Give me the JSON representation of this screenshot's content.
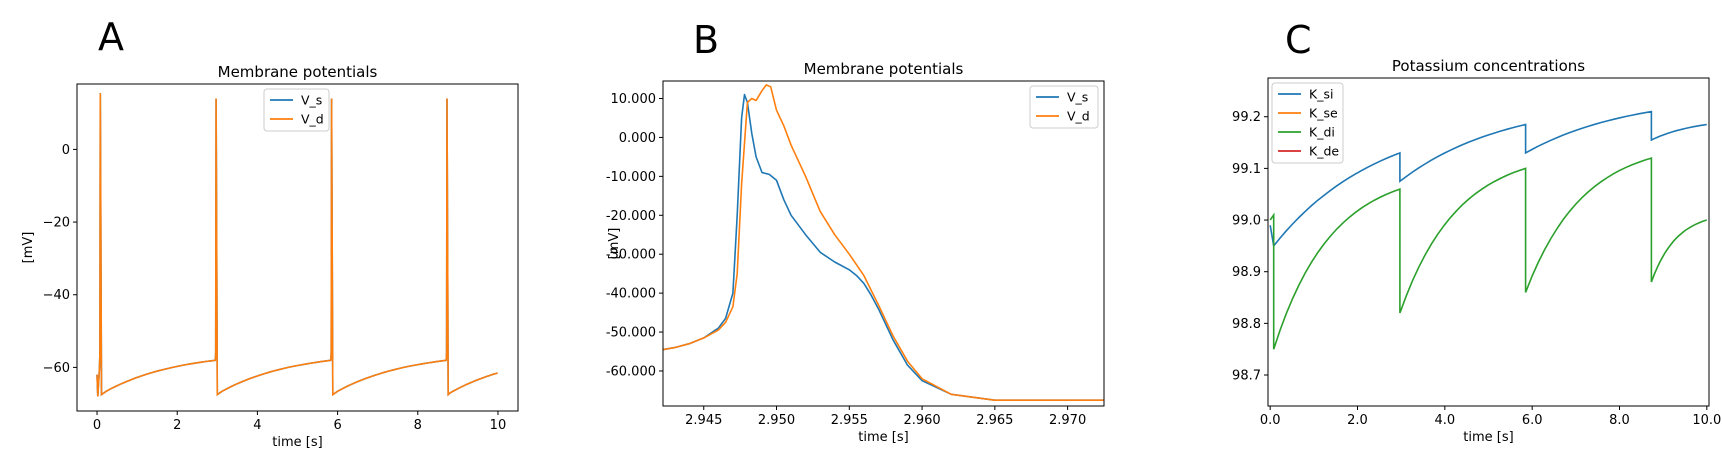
{
  "figure": {
    "panel_letters": [
      "A",
      "B",
      "C"
    ]
  },
  "colors": {
    "blue": "#1f77b4",
    "orange": "#ff7f0e",
    "green": "#2ca02c",
    "red": "#d62728"
  },
  "chart_data": [
    {
      "id": "A",
      "type": "line",
      "title": "Membrane potentials",
      "xlabel": "time [s]",
      "ylabel": "[mV]",
      "xlim": [
        -0.5,
        10.5
      ],
      "ylim": [
        -72,
        18
      ],
      "xticks": [
        0,
        2,
        4,
        6,
        8,
        10
      ],
      "yticks": [
        0,
        -20,
        -40,
        -60
      ],
      "legend_position": "top-center",
      "grid": false,
      "spike_times": [
        0.08,
        2.97,
        5.85,
        8.73
      ],
      "series": [
        {
          "name": "V_s",
          "color_key": "blue",
          "end_time": 10.0
        },
        {
          "name": "V_d",
          "color_key": "orange",
          "end_time": 10.0
        }
      ]
    },
    {
      "id": "B",
      "type": "line",
      "title": "Membrane potentials",
      "xlabel": "time [s]",
      "ylabel": "[mV]",
      "xlim": [
        2.9422,
        2.9725
      ],
      "ylim": [
        -69,
        14.5
      ],
      "xticks": [
        2.945,
        2.95,
        2.955,
        2.96,
        2.965,
        2.97
      ],
      "yticks": [
        10,
        0,
        -10,
        -20,
        -30,
        -40,
        -50,
        -60
      ],
      "legend_position": "top-right",
      "grid": false,
      "series": [
        {
          "name": "V_s",
          "color_key": "blue",
          "x": [
            2.9422,
            2.943,
            2.944,
            2.945,
            2.946,
            2.9465,
            2.947,
            2.9473,
            2.9476,
            2.9478,
            2.948,
            2.9483,
            2.9486,
            2.949,
            2.9495,
            2.95,
            2.9505,
            2.951,
            2.952,
            2.953,
            2.954,
            2.955,
            2.9555,
            2.956,
            2.9565,
            2.957,
            2.958,
            2.959,
            2.96,
            2.962,
            2.965,
            2.9725
          ],
          "y": [
            -54.5,
            -54,
            -53,
            -51.5,
            -49,
            -46.5,
            -40,
            -20,
            5,
            11,
            9,
            1,
            -5,
            -9,
            -9.5,
            -11,
            -16,
            -20,
            -25,
            -29.5,
            -32,
            -34,
            -35.5,
            -37.5,
            -40.5,
            -44,
            -52,
            -58.5,
            -62.5,
            -66,
            -67.5,
            -67.5
          ]
        },
        {
          "name": "V_d",
          "color_key": "orange",
          "x": [
            2.9422,
            2.943,
            2.944,
            2.945,
            2.946,
            2.9465,
            2.947,
            2.9473,
            2.9476,
            2.948,
            2.9483,
            2.9486,
            2.949,
            2.9493,
            2.9496,
            2.95,
            2.9505,
            2.951,
            2.952,
            2.953,
            2.954,
            2.955,
            2.956,
            2.957,
            2.958,
            2.959,
            2.96,
            2.962,
            2.965,
            2.9725
          ],
          "y": [
            -54.5,
            -54,
            -53,
            -51.5,
            -49.5,
            -47.5,
            -43.5,
            -35,
            -12,
            9,
            10,
            9.5,
            12,
            13.5,
            13,
            7,
            3,
            -2,
            -10,
            -19,
            -25,
            -30,
            -35.5,
            -43,
            -51,
            -57.5,
            -62,
            -66,
            -67.5,
            -67.5
          ]
        }
      ]
    },
    {
      "id": "C",
      "type": "line",
      "title": "Potassium concentrations",
      "xlabel": "time [s]",
      "ylabel": "",
      "xlim": [
        -0.05,
        10.05
      ],
      "ylim": [
        98.64,
        99.275
      ],
      "xticks": [
        0,
        2,
        4,
        6,
        8,
        10
      ],
      "yticks": [
        99.2,
        99.1,
        99.0,
        98.9,
        98.8,
        98.7
      ],
      "legend_position": "top-left",
      "grid": false,
      "series": [
        {
          "name": "K_si",
          "color_key": "blue",
          "start": [
            0.0,
            98.99
          ],
          "drop_to": 98.95,
          "segments": [
            [
              0.08,
              98.95,
              2.97,
              99.13
            ],
            [
              2.97,
              99.075,
              5.85,
              99.185
            ],
            [
              5.85,
              99.13,
              8.73,
              99.21
            ],
            [
              8.73,
              99.155,
              10.0,
              99.185
            ]
          ]
        },
        {
          "name": "K_se",
          "color_key": "orange",
          "hidden_under_K_di": true
        },
        {
          "name": "K_di",
          "color_key": "green",
          "start": [
            0.0,
            99.0
          ],
          "rise_to": 99.01,
          "segments": [
            [
              0.08,
              98.75,
              2.97,
              99.06
            ],
            [
              2.97,
              98.82,
              5.85,
              99.1
            ],
            [
              5.85,
              98.86,
              8.73,
              99.12
            ],
            [
              8.73,
              98.88,
              10.0,
              99.0
            ]
          ]
        },
        {
          "name": "K_de",
          "color_key": "red",
          "hidden_under_K_di": true
        }
      ]
    }
  ]
}
